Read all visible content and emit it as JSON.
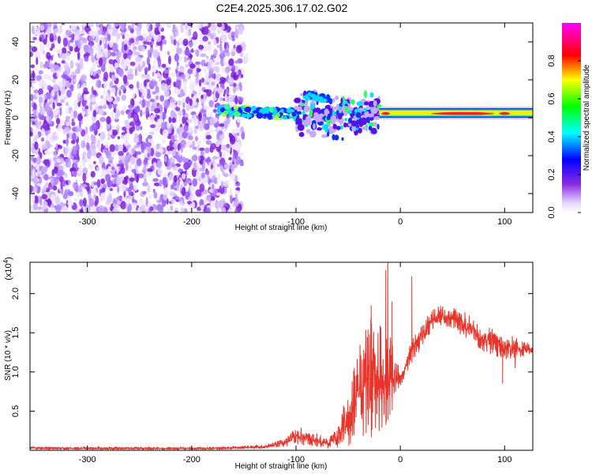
{
  "title": "C2E4.2025.306.17.02.G02",
  "colors": {
    "line": "#e8342a",
    "frame": "#000000"
  },
  "chart_data": [
    {
      "type": "heatmap",
      "title": "C2E4.2025.306.17.02.G02",
      "xlabel": "Height of straight line (km)",
      "ylabel": "Frequency (Hz)",
      "xlim": [
        -355,
        127
      ],
      "ylim": [
        -50,
        50
      ],
      "xticks": [
        -300,
        -200,
        -100,
        0,
        100
      ],
      "xtick_labels": [
        "-300",
        "-200",
        "-100",
        "0",
        "100"
      ],
      "yticks": [
        -40,
        -20,
        0,
        20,
        40
      ],
      "ytick_labels": [
        "-40",
        "-20",
        "0",
        "20",
        "40"
      ],
      "colorbar": {
        "label": "Normalized spectral amplitude",
        "range": [
          0,
          1
        ],
        "ticks": [
          0.0,
          0.2,
          0.4,
          0.6,
          0.8
        ],
        "tick_labels": [
          "0.0",
          "0.2",
          "0.4",
          "0.6",
          "0.8"
        ],
        "colormap": "rainbow (white-violet-blue-cyan-green-yellow-red-magenta)"
      },
      "features": [
        {
          "region": "broadband noise",
          "x_range": [
            -355,
            -155
          ],
          "freq_range": [
            -50,
            50
          ],
          "amplitude": "low (0.1-0.3)"
        },
        {
          "region": "signal onset",
          "x_range": [
            -175,
            -100
          ],
          "freq_range": [
            0,
            8
          ],
          "amplitude": "medium (0.4-0.6)"
        },
        {
          "region": "dispersed signal",
          "x_range": [
            -100,
            -20
          ],
          "freq_range": [
            -15,
            15
          ],
          "amplitude": "medium-high"
        },
        {
          "region": "strong narrowband",
          "x_range": [
            -20,
            127
          ],
          "freq_range": [
            1,
            4
          ],
          "amplitude": "high (0.8-1.0)"
        }
      ]
    },
    {
      "type": "line",
      "xlabel": "Height of straight line (km)",
      "ylabel": "SNR (10 * v/v)",
      "multiplier_label": "(x10",
      "multiplier_exponent": "4",
      "multiplier_close": ")",
      "xlim": [
        -355,
        127
      ],
      "ylim": [
        0,
        2.4
      ],
      "xticks": [
        -300,
        -200,
        -100,
        0,
        100
      ],
      "xtick_labels": [
        "-300",
        "-200",
        "-100",
        "0",
        "100"
      ],
      "yticks": [
        0.5,
        1.0,
        1.5,
        2.0
      ],
      "ytick_labels": [
        "0.5",
        "1.0",
        "1.5",
        "2.0"
      ],
      "series": [
        {
          "name": "SNR",
          "color": "#e8342a",
          "envelope": {
            "x": [
              -355,
              -320,
              -250,
              -180,
              -130,
              -110,
              -100,
              -90,
              -80,
              -70,
              -60,
              -50,
              -40,
              -30,
              -20,
              -15,
              -10,
              -5,
              0,
              5,
              10,
              20,
              30,
              40,
              50,
              60,
              70,
              80,
              90,
              100,
              110,
              120,
              127
            ],
            "lo": [
              0.01,
              0.01,
              0.01,
              0.01,
              0.02,
              0.04,
              0.06,
              0.06,
              0.03,
              0.02,
              0.03,
              0.05,
              0.1,
              0.15,
              0.25,
              0.3,
              0.45,
              0.6,
              0.8,
              0.95,
              1.1,
              1.3,
              1.5,
              1.6,
              1.55,
              1.45,
              1.35,
              1.25,
              1.2,
              1.15,
              1.15,
              1.2,
              1.25
            ],
            "hi": [
              0.05,
              0.04,
              0.04,
              0.04,
              0.07,
              0.15,
              0.3,
              0.28,
              0.22,
              0.15,
              0.3,
              0.8,
              1.3,
              1.75,
              1.7,
              1.5,
              1.6,
              1.25,
              1.0,
              1.2,
              1.4,
              1.6,
              1.8,
              1.85,
              1.82,
              1.78,
              1.7,
              1.6,
              1.55,
              1.5,
              1.45,
              1.4,
              1.35
            ]
          },
          "spikes": [
            {
              "x": -28,
              "y": 1.85
            },
            {
              "x": -14,
              "y": 2.3
            },
            {
              "x": -12,
              "y": 2.45
            },
            {
              "x": -8,
              "y": 1.9
            },
            {
              "x": 11,
              "y": 2.22
            },
            {
              "x": 98,
              "y": 0.85
            },
            {
              "x": 110,
              "y": 1.05
            }
          ]
        }
      ]
    }
  ]
}
